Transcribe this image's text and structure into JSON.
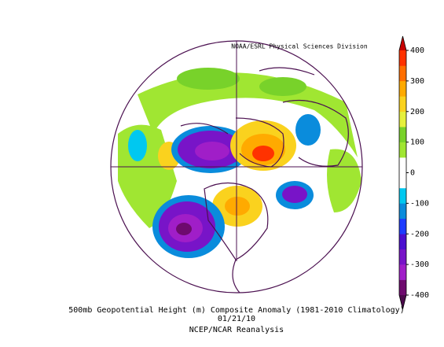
{
  "header": {
    "credit": "NOAA/ESRL Physical Sciences Division"
  },
  "caption": {
    "title": "500mb Geopotential Height (m) Composite Anomaly (1981-2010 Climatology)",
    "date": "01/21/10",
    "source": "NCEP/NCAR Reanalysis"
  },
  "colorbar": {
    "vlim": [
      -400,
      400
    ],
    "ticks": [
      400,
      300,
      200,
      100,
      0,
      -100,
      -200,
      -300,
      -400
    ],
    "colors": [
      "#6e0a6e",
      "#a01ec8",
      "#7814c8",
      "#4b0fd0",
      "#1e3cff",
      "#0a8cdc",
      "#00c8f0",
      "#ffffff",
      "#ffffff",
      "#a0e632",
      "#78d22a",
      "#e6f03c",
      "#fad21e",
      "#ffaa00",
      "#ff6e00",
      "#ff3200"
    ],
    "extend_colors": [
      "#4b0a4b",
      "#c80000"
    ]
  }
}
